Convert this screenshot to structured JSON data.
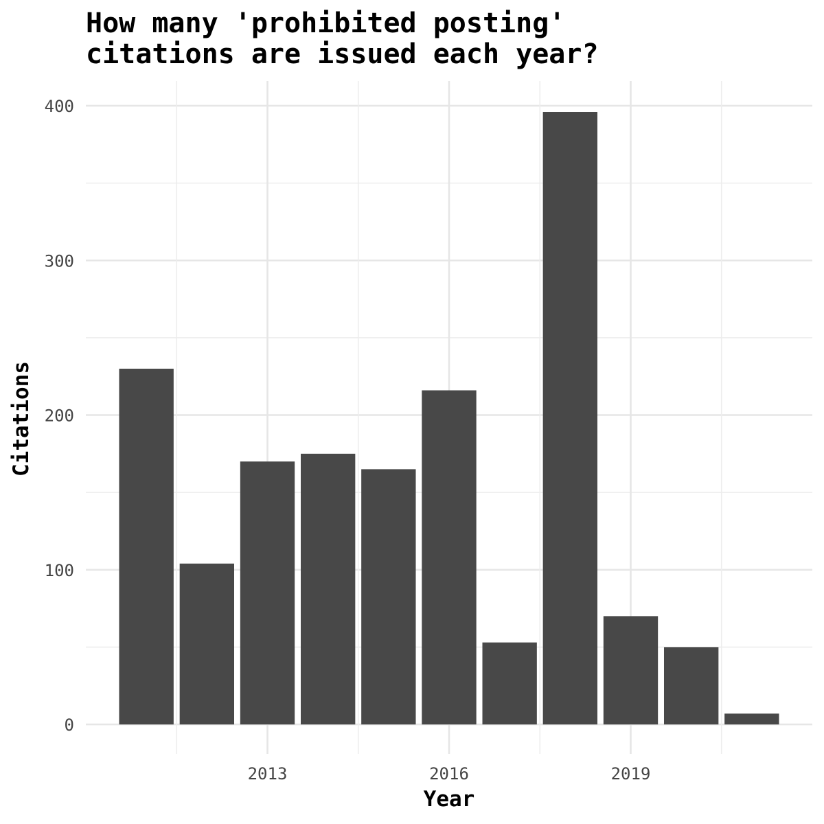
{
  "colors": {
    "bar_fill": "#484848",
    "background": "#ffffff",
    "grid": "#e6e6e6",
    "tick_text": "#444444",
    "title_text": "#000000"
  },
  "chart_data": {
    "type": "bar",
    "title_lines": [
      "How many 'prohibited posting'",
      "citations are issued each year?"
    ],
    "xlabel": "Year",
    "ylabel": "Citations",
    "x": [
      2011,
      2012,
      2013,
      2014,
      2015,
      2016,
      2017,
      2018,
      2019,
      2020,
      2021
    ],
    "values": [
      230,
      104,
      170,
      175,
      165,
      216,
      53,
      396,
      70,
      50,
      7
    ],
    "xlim": [
      2010,
      2022
    ],
    "ylim": [
      0,
      400
    ],
    "x_ticks": [
      2013,
      2016,
      2019
    ],
    "x_tick_labels": [
      "2013",
      "2016",
      "2019"
    ],
    "y_ticks": [
      0,
      100,
      200,
      300,
      400
    ],
    "y_tick_labels": [
      "0",
      "100",
      "200",
      "300",
      "400"
    ],
    "grid": true,
    "legend": "none"
  }
}
